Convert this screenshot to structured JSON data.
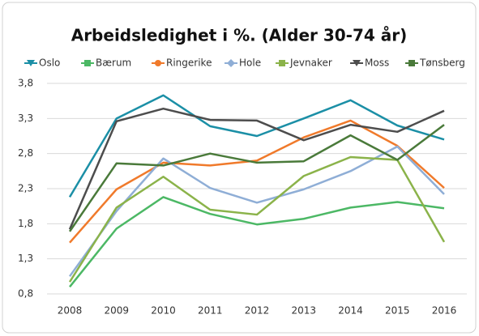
{
  "chart_data": {
    "type": "line",
    "title": "Arbeidsledighet i %. (Alder 30-74 år)",
    "categories": [
      "2008",
      "2009",
      "2010",
      "2011",
      "2012",
      "2013",
      "2014",
      "2015",
      "2016"
    ],
    "ylim": [
      0.8,
      3.8
    ],
    "yticks": [
      {
        "value": 0.8,
        "label": "0,8"
      },
      {
        "value": 1.3,
        "label": "1,3"
      },
      {
        "value": 1.8,
        "label": "1,8"
      },
      {
        "value": 2.3,
        "label": "2,3"
      },
      {
        "value": 2.8,
        "label": "2,8"
      },
      {
        "value": 3.3,
        "label": "3,3"
      },
      {
        "value": 3.8,
        "label": "3,8"
      }
    ],
    "grid": true,
    "legend": "top",
    "series": [
      {
        "name": "Oslo",
        "color": "#1b8fa6",
        "marker": "triangle-down",
        "values": [
          2.18,
          3.3,
          3.63,
          3.19,
          3.05,
          3.3,
          3.56,
          3.2,
          3.0
        ]
      },
      {
        "name": "Bærum",
        "color": "#4cb865",
        "marker": "square",
        "values": [
          0.9,
          1.73,
          2.18,
          1.94,
          1.79,
          1.87,
          2.03,
          2.11,
          2.02
        ]
      },
      {
        "name": "Ringerike",
        "color": "#f07a2b",
        "marker": "circle",
        "values": [
          1.53,
          2.29,
          2.67,
          2.63,
          2.7,
          3.03,
          3.27,
          2.91,
          2.31
        ]
      },
      {
        "name": "Hole",
        "color": "#8faed6",
        "marker": "diamond",
        "values": [
          1.05,
          1.98,
          2.73,
          2.31,
          2.1,
          2.29,
          2.55,
          2.9,
          2.22
        ]
      },
      {
        "name": "Jevnaker",
        "color": "#8bb34a",
        "marker": "square",
        "values": [
          0.97,
          2.03,
          2.47,
          2.0,
          1.93,
          2.48,
          2.75,
          2.71,
          1.54
        ]
      },
      {
        "name": "Moss",
        "color": "#4d4d4d",
        "marker": "triangle-down",
        "values": [
          1.72,
          3.26,
          3.44,
          3.28,
          3.27,
          2.99,
          3.21,
          3.11,
          3.41
        ]
      },
      {
        "name": "Tønsberg",
        "color": "#4a7a3a",
        "marker": "square",
        "values": [
          1.69,
          2.66,
          2.63,
          2.8,
          2.67,
          2.69,
          3.06,
          2.71,
          3.21
        ]
      }
    ]
  }
}
